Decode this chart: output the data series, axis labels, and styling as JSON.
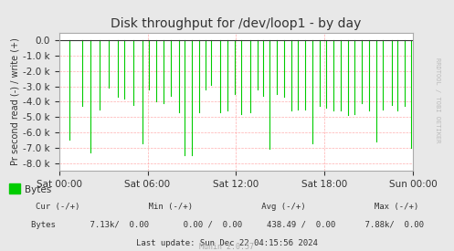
{
  "title": "Disk throughput for /dev/loop1 - by day",
  "ylabel": "Pr second read (-) / write (+)",
  "xlabel": "",
  "background_color": "#e8e8e8",
  "plot_bg_color": "#ffffff",
  "grid_color": "#ff9999",
  "line_color": "#00cc00",
  "ylim": [
    -8500,
    500
  ],
  "yticks": [
    0,
    -1000,
    -2000,
    -3000,
    -4000,
    -5000,
    -6000,
    -7000,
    -8000
  ],
  "yticklabels": [
    "0.0",
    "-1.0 k",
    "-2.0 k",
    "-3.0 k",
    "-4.0 k",
    "-5.0 k",
    "-6.0 k",
    "-7.0 k",
    "-8.0 k"
  ],
  "xtick_labels": [
    "Sat 00:00",
    "Sat 06:00",
    "Sat 12:00",
    "Sat 18:00",
    "Sun 00:00"
  ],
  "legend_label": "Bytes",
  "legend_color": "#00cc00",
  "footer_text1": "     Cur (-/+)          Min (-/+)          Avg (-/+)          Max (-/+)",
  "footer_text2": "  Bytes       7.13k/   0.00          0.00 /   0.00      438.49 /   0.00       7.88k/   0.00",
  "footer_text3": "Last update: Sun Dec 22 04:15:56 2024",
  "footer_text4": "Munin 2.0.57",
  "watermark": "RRDTOOL / TOBI OETIKER",
  "spike_positions": [
    0.03,
    0.065,
    0.09,
    0.115,
    0.14,
    0.165,
    0.185,
    0.21,
    0.235,
    0.255,
    0.275,
    0.295,
    0.315,
    0.34,
    0.355,
    0.375,
    0.395,
    0.415,
    0.43,
    0.455,
    0.475,
    0.495,
    0.515,
    0.54,
    0.56,
    0.575,
    0.595,
    0.615,
    0.635,
    0.655,
    0.675,
    0.695,
    0.715,
    0.735,
    0.755,
    0.775,
    0.795,
    0.815,
    0.835,
    0.855,
    0.875,
    0.895,
    0.915,
    0.94,
    0.955,
    0.975,
    0.995
  ],
  "spike_depths": [
    -6500,
    -4300,
    -7300,
    -4500,
    -3100,
    -3700,
    -3800,
    -4200,
    -6700,
    -3200,
    -4000,
    -4100,
    -3600,
    -4700,
    -7500,
    -7500,
    -4700,
    -3200,
    -2900,
    -4700,
    -4600,
    -3500,
    -4800,
    -4700,
    -3200,
    -3600,
    -7100,
    -3500,
    -3700,
    -4600,
    -4500,
    -4500,
    -6700,
    -4300,
    -4400,
    -4600,
    -4600,
    -4900,
    -4800,
    -4100,
    -4600,
    -6600,
    -4500,
    -4200,
    -4600,
    -4300,
    -7000
  ]
}
